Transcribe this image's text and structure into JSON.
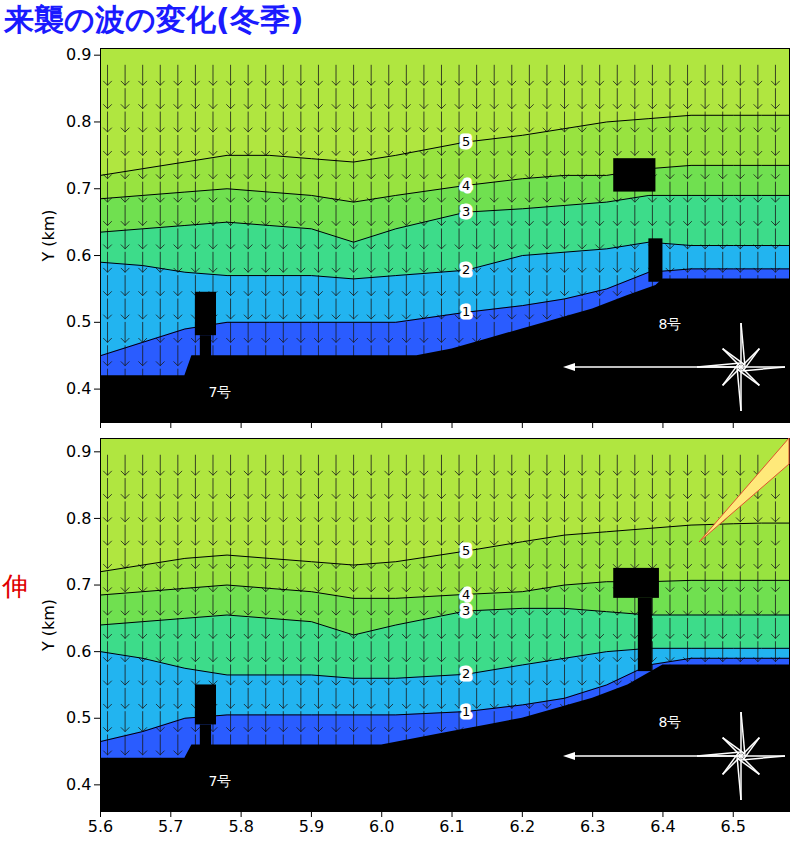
{
  "chart_data": [
    {
      "type": "contour_map",
      "title": "来襲の波の変化(冬季)",
      "tick_labels": "y",
      "xlim": [
        5.6,
        6.58
      ],
      "ylim": [
        0.35,
        0.91
      ],
      "xticks": [
        5.6,
        5.7,
        5.8,
        5.9,
        {
          "value": 6,
          "label": "6.0"
        },
        6.1,
        6.2,
        6.3,
        6.4,
        6.5
      ],
      "yticks": [
        0.4,
        0.5,
        0.6,
        0.7,
        0.8,
        0.9
      ],
      "y_label": "Y (km)",
      "color": "#b0e640",
      "contour_x": [
        5.6,
        5.66,
        5.72,
        5.78,
        5.84,
        5.9,
        5.96,
        6.02,
        6.12,
        6.2,
        6.26,
        6.32,
        6.38,
        6.44,
        6.5,
        6.54,
        6.58
      ],
      "contours": [
        {
          "level": 1,
          "color": "#2a5cff",
          "y": [
            0.45,
            0.47,
            0.49,
            0.5,
            0.5,
            0.5,
            0.5,
            0.5,
            0.515,
            0.525,
            0.535,
            0.55,
            0.575,
            0.58,
            0.58,
            0.58,
            0.58
          ]
        },
        {
          "level": 2,
          "color": "#22b4f0",
          "y": [
            0.59,
            0.585,
            0.575,
            0.57,
            0.57,
            0.57,
            0.565,
            0.57,
            0.578,
            0.6,
            0.605,
            0.61,
            0.62,
            0.615,
            0.615,
            0.615,
            0.615
          ]
        },
        {
          "level": 3,
          "color": "#3ddc8a",
          "y": [
            0.635,
            0.64,
            0.645,
            0.65,
            0.645,
            0.64,
            0.62,
            0.64,
            0.665,
            0.67,
            0.675,
            0.68,
            0.69,
            0.69,
            0.69,
            0.69,
            0.69
          ]
        },
        {
          "level": 4,
          "color": "#70e050",
          "y": [
            0.685,
            0.69,
            0.695,
            0.7,
            0.695,
            0.69,
            0.68,
            0.69,
            0.705,
            0.715,
            0.72,
            0.72,
            0.73,
            0.735,
            0.735,
            0.735,
            0.735
          ]
        },
        {
          "level": 5,
          "color": "#98e340",
          "y": [
            0.72,
            0.73,
            0.74,
            0.75,
            0.75,
            0.745,
            0.74,
            0.75,
            0.77,
            0.78,
            0.79,
            0.8,
            0.805,
            0.81,
            0.81,
            0.81,
            0.81
          ]
        }
      ],
      "land": {
        "x": [
          5.6,
          5.72,
          5.73,
          6.05,
          6.1,
          6.15,
          6.2,
          6.25,
          6.3,
          6.35,
          6.39,
          6.4,
          6.58
        ],
        "y": [
          0.42,
          0.42,
          0.45,
          0.45,
          0.46,
          0.475,
          0.49,
          0.505,
          0.52,
          0.54,
          0.555,
          0.565,
          0.565
        ]
      },
      "structures": [
        {
          "name": "7号",
          "label_at": [
            5.77,
            0.395
          ],
          "rects": [
            [
              5.735,
              5.765,
              0.48,
              0.545
            ],
            [
              5.742,
              5.758,
              0.44,
              0.48
            ]
          ]
        },
        {
          "name": "8号",
          "label_at": [
            6.41,
            0.497
          ],
          "rects": [
            [
              6.33,
              6.39,
              0.695,
              0.745
            ],
            [
              6.38,
              6.4,
              0.56,
              0.625
            ]
          ]
        }
      ],
      "arrows": {
        "direction_deg": 180,
        "x": [
          5.61,
          5.635,
          5.66,
          5.685,
          5.71,
          5.735,
          5.76,
          5.785,
          5.81,
          5.835,
          5.86,
          5.885,
          5.91,
          5.935,
          5.96,
          5.985,
          6.01,
          6.035,
          6.06,
          6.085,
          6.11,
          6.135,
          6.16,
          6.185,
          6.21,
          6.235,
          6.26,
          6.285,
          6.31,
          6.335,
          6.36,
          6.385,
          6.41,
          6.435,
          6.46,
          6.485,
          6.51,
          6.535,
          6.56
        ],
        "y": [
          0.43,
          0.465,
          0.5,
          0.535,
          0.57,
          0.605,
          0.64,
          0.675,
          0.71,
          0.745,
          0.78,
          0.815,
          0.85,
          0.885
        ]
      }
    },
    {
      "type": "contour_map",
      "annotation": "伸",
      "xlim": [
        5.6,
        6.58
      ],
      "ylim": [
        0.36,
        0.92
      ],
      "xticks": [
        5.6,
        5.7,
        5.8,
        5.9,
        {
          "value": 6,
          "label": "6.0"
        },
        6.1,
        6.2,
        6.3,
        6.4,
        6.5
      ],
      "yticks": [
        0.4,
        0.5,
        0.6,
        0.7,
        0.8,
        0.9
      ],
      "y_label": "Y (km)",
      "color": "#b0e640",
      "contour_x": [
        5.6,
        5.66,
        5.72,
        5.78,
        5.84,
        5.9,
        5.96,
        6.02,
        6.12,
        6.2,
        6.26,
        6.32,
        6.38,
        6.44,
        6.5,
        6.54,
        6.58
      ],
      "contours": [
        {
          "level": 1,
          "color": "#2a5cff",
          "y": [
            0.465,
            0.48,
            0.5,
            0.505,
            0.505,
            0.505,
            0.505,
            0.505,
            0.51,
            0.52,
            0.53,
            0.55,
            0.58,
            0.59,
            0.59,
            0.59,
            0.59
          ]
        },
        {
          "level": 2,
          "color": "#22b4f0",
          "y": [
            0.6,
            0.59,
            0.575,
            0.565,
            0.565,
            0.565,
            0.56,
            0.56,
            0.566,
            0.58,
            0.59,
            0.6,
            0.605,
            0.605,
            0.605,
            0.605,
            0.605
          ]
        },
        {
          "level": 3,
          "color": "#3ddc8a",
          "y": [
            0.64,
            0.645,
            0.65,
            0.655,
            0.65,
            0.645,
            0.625,
            0.64,
            0.661,
            0.665,
            0.665,
            0.66,
            0.655,
            0.655,
            0.655,
            0.655,
            0.655
          ]
        },
        {
          "level": 4,
          "color": "#70e050",
          "y": [
            0.685,
            0.69,
            0.695,
            0.7,
            0.695,
            0.69,
            0.68,
            0.68,
            0.686,
            0.69,
            0.7,
            0.705,
            0.705,
            0.707,
            0.707,
            0.707,
            0.707
          ]
        },
        {
          "level": 5,
          "color": "#98e340",
          "y": [
            0.72,
            0.73,
            0.74,
            0.745,
            0.74,
            0.735,
            0.73,
            0.735,
            0.751,
            0.765,
            0.775,
            0.78,
            0.785,
            0.79,
            0.792,
            0.793,
            0.793
          ]
        }
      ],
      "land": {
        "x": [
          5.6,
          5.72,
          5.73,
          6.0,
          6.05,
          6.1,
          6.15,
          6.2,
          6.25,
          6.3,
          6.35,
          6.4,
          6.58
        ],
        "y": [
          0.44,
          0.44,
          0.46,
          0.46,
          0.47,
          0.48,
          0.49,
          0.5,
          0.515,
          0.53,
          0.55,
          0.58,
          0.58
        ]
      },
      "structures": [
        {
          "name": "7号",
          "label_at": [
            5.77,
            0.405
          ],
          "rects": [
            [
              5.735,
              5.765,
              0.49,
              0.55
            ],
            [
              5.742,
              5.758,
              0.45,
              0.49
            ]
          ]
        },
        {
          "name": "8号",
          "label_at": [
            6.41,
            0.493
          ],
          "rects": [
            [
              6.33,
              6.395,
              0.68,
              0.725
            ],
            [
              6.365,
              6.385,
              0.57,
              0.68
            ]
          ]
        }
      ],
      "arrows": {
        "direction_deg": 180,
        "x": [
          5.61,
          5.635,
          5.66,
          5.685,
          5.71,
          5.735,
          5.76,
          5.785,
          5.81,
          5.835,
          5.86,
          5.885,
          5.91,
          5.935,
          5.96,
          5.985,
          6.01,
          6.035,
          6.06,
          6.085,
          6.11,
          6.135,
          6.16,
          6.185,
          6.21,
          6.235,
          6.26,
          6.285,
          6.31,
          6.335,
          6.36,
          6.385,
          6.41,
          6.435,
          6.46,
          6.485,
          6.51,
          6.535,
          6.56
        ],
        "y": [
          0.44,
          0.475,
          0.51,
          0.545,
          0.58,
          0.615,
          0.65,
          0.685,
          0.72,
          0.755,
          0.79,
          0.825,
          0.86,
          0.895
        ]
      }
    }
  ]
}
